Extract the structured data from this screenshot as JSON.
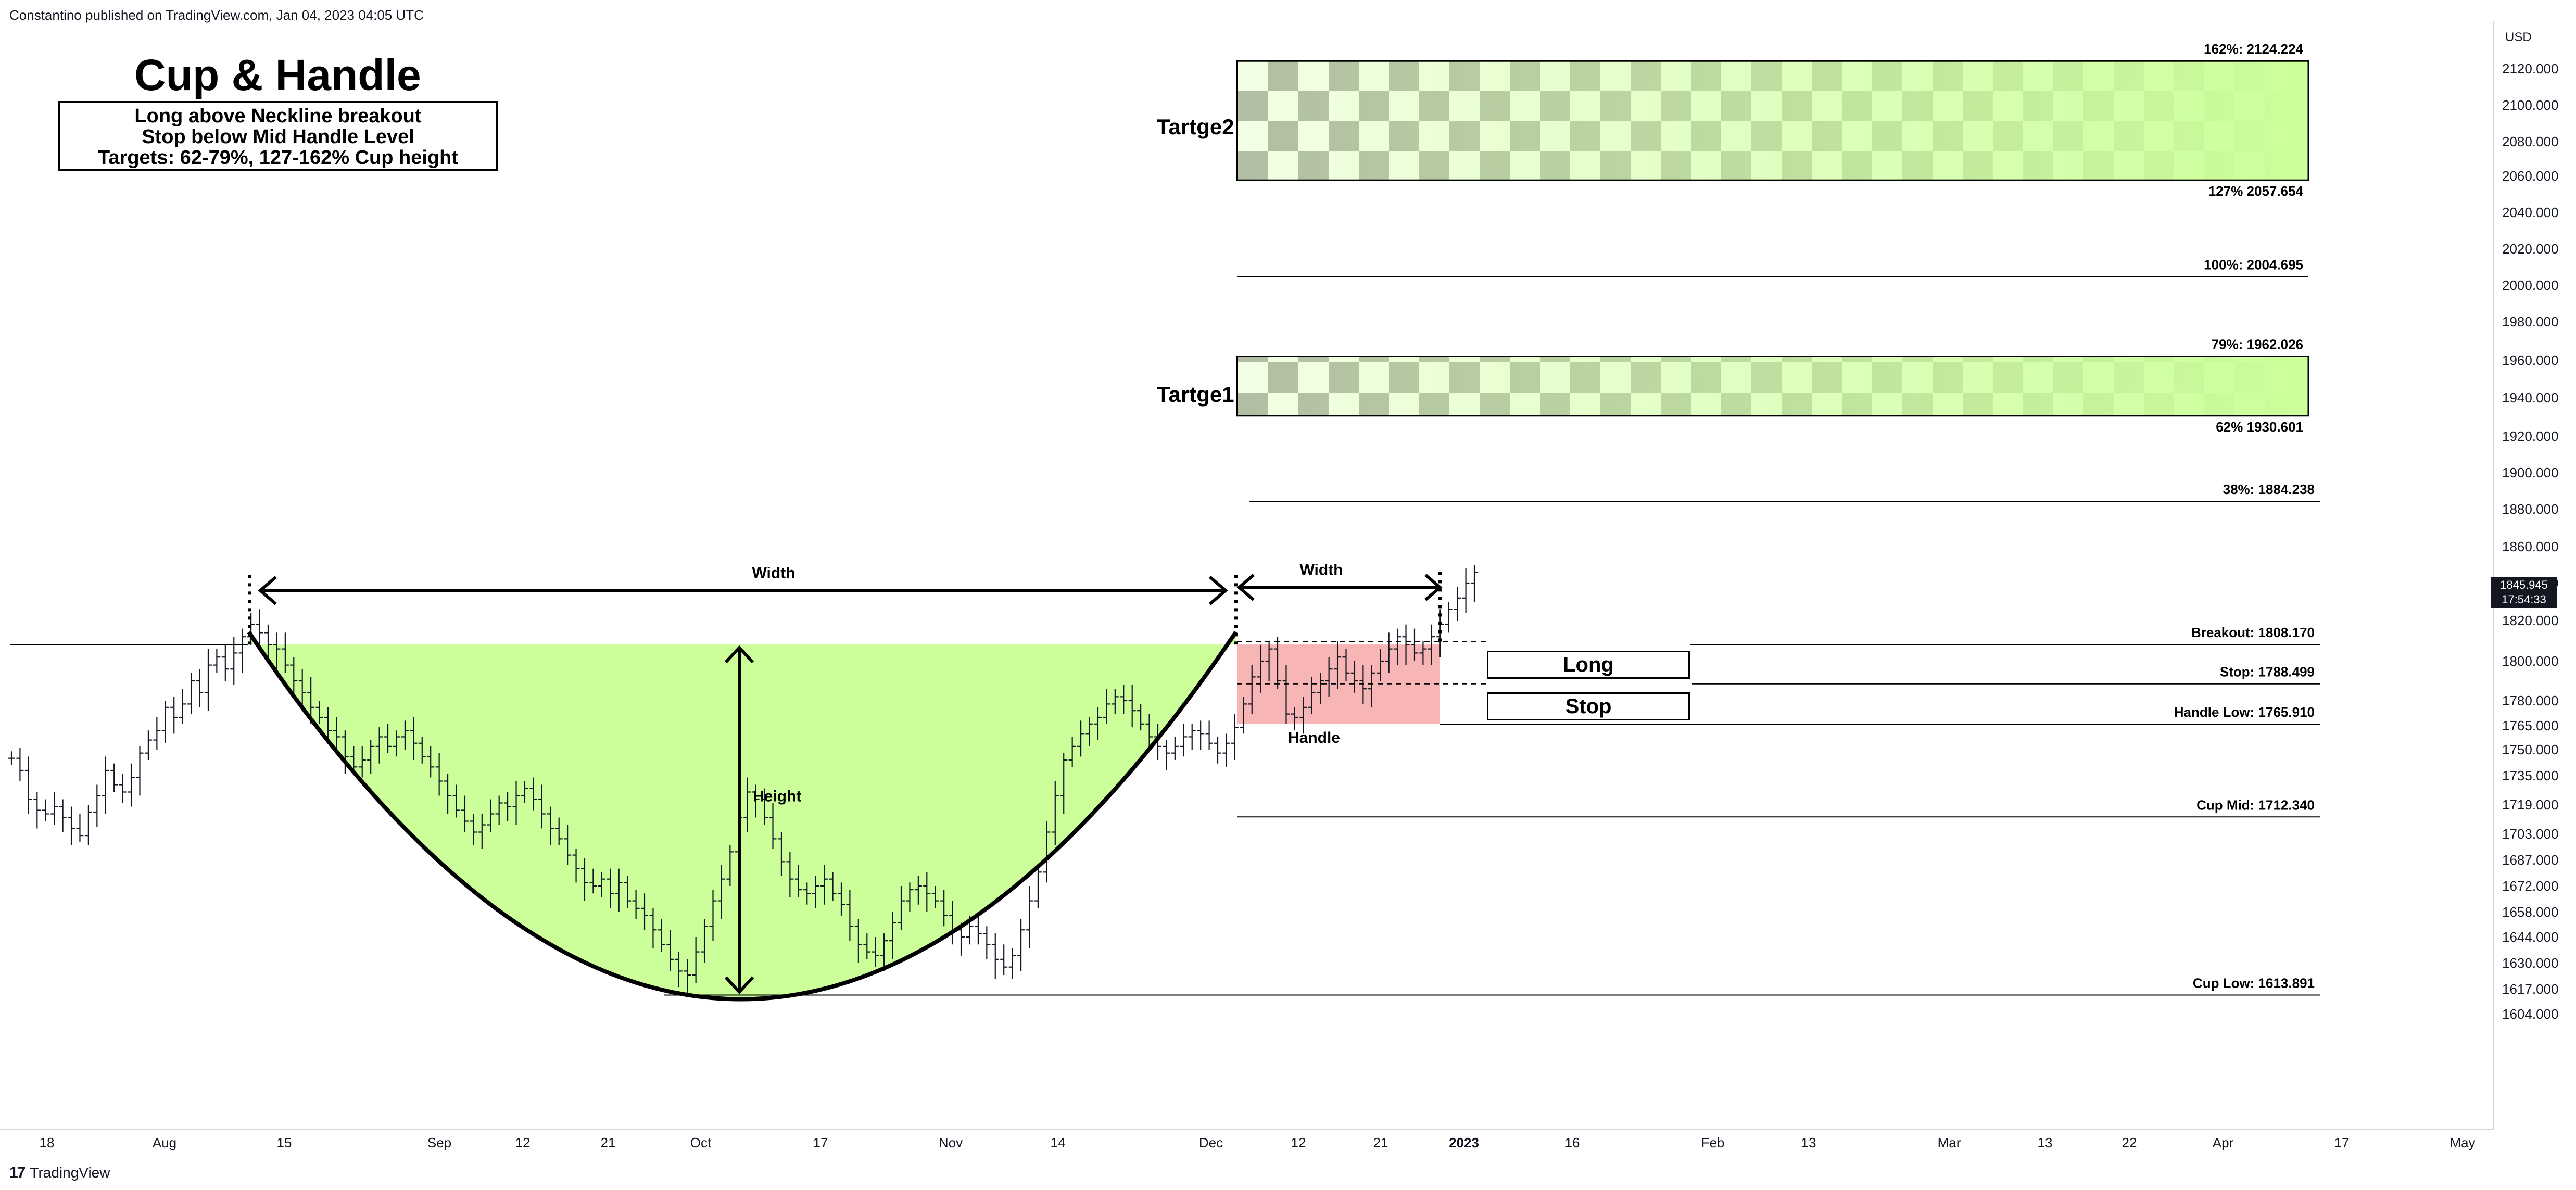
{
  "header": {
    "attribution": "Constantino published on TradingView.com, Jan 04, 2023 04:05 UTC"
  },
  "footer": {
    "brand": "TradingView",
    "logo_mark": "17"
  },
  "annotations": {
    "title": "Cup & Handle",
    "notes": [
      "Long above Neckline breakout",
      "Stop below Mid Handle Level",
      "Targets: 62-79%, 127-162% Cup height"
    ],
    "target2_label": "Tartge2",
    "target1_label": "Tartge1",
    "long_label": "Long",
    "stop_label": "Stop",
    "cup_width_label": "Width",
    "handle_width_label": "Width",
    "height_label": "Height",
    "handle_label": "Handle"
  },
  "chart_data": {
    "type": "ohlc",
    "currency": "USD",
    "y_axis_ticks": [
      2120,
      2100,
      2080,
      2060,
      2040,
      2020,
      2000,
      1980,
      1960,
      1940,
      1920,
      1900,
      1880,
      1860,
      1840,
      1820,
      1800,
      1780,
      1765,
      1750,
      1735,
      1719,
      1703,
      1687,
      1672,
      1658,
      1644,
      1630,
      1617,
      1604
    ],
    "x_axis_labels": [
      "18",
      "Aug",
      "15",
      "Sep",
      "12",
      "21",
      "Oct",
      "17",
      "Nov",
      "14",
      "Dec",
      "12",
      "21",
      "2023",
      "16",
      "Feb",
      "13",
      "Mar",
      "13",
      "22",
      "Apr",
      "17",
      "May"
    ],
    "x_axis_bold": [
      "2023"
    ],
    "last_price": {
      "value": "1845.945",
      "countdown": "17:54:33"
    },
    "levels": [
      {
        "label": "162%: 2124.224",
        "value": 2124.224
      },
      {
        "label": "127% 2057.654",
        "value": 2057.654
      },
      {
        "label": "100%: 2004.695",
        "value": 2004.695
      },
      {
        "label": "79%: 1962.026",
        "value": 1962.026
      },
      {
        "label": "62% 1930.601",
        "value": 1930.601
      },
      {
        "label": "38%: 1884.238",
        "value": 1884.238
      },
      {
        "label": "Breakout: 1808.170",
        "value": 1808.17
      },
      {
        "label": "Stop: 1788.499",
        "value": 1788.499
      },
      {
        "label": "Handle Low: 1765.910",
        "value": 1765.91
      },
      {
        "label": "Cup Mid: 1712.340",
        "value": 1712.34
      },
      {
        "label": "Cup Low: 1613.891",
        "value": 1613.891
      }
    ],
    "ohlc_daily": [
      1745,
      1738,
      1722,
      1716,
      1714,
      1718,
      1712,
      1706,
      1702,
      1715,
      1724,
      1738,
      1730,
      1726,
      1734,
      1748,
      1756,
      1762,
      1776,
      1770,
      1778,
      1790,
      1784,
      1798,
      1802,
      1796,
      1804,
      1812,
      1818,
      1814,
      1808,
      1806,
      1798,
      1790,
      1784,
      1776,
      1770,
      1762,
      1758,
      1746,
      1740,
      1744,
      1752,
      1758,
      1752,
      1758,
      1762,
      1754,
      1746,
      1740,
      1732,
      1724,
      1716,
      1710,
      1704,
      1708,
      1714,
      1720,
      1718,
      1724,
      1728,
      1722,
      1714,
      1706,
      1700,
      1690,
      1682,
      1674,
      1672,
      1676,
      1668,
      1674,
      1664,
      1660,
      1656,
      1648,
      1640,
      1632,
      1626,
      1624,
      1636,
      1650,
      1664,
      1676,
      1692,
      1712,
      1726,
      1722,
      1712,
      1700,
      1686,
      1676,
      1670,
      1668,
      1672,
      1676,
      1668,
      1662,
      1650,
      1640,
      1636,
      1634,
      1642,
      1652,
      1664,
      1670,
      1672,
      1668,
      1664,
      1656,
      1648,
      1644,
      1650,
      1646,
      1640,
      1632,
      1628,
      1634,
      1648,
      1664,
      1680,
      1704,
      1724,
      1744,
      1752,
      1760,
      1766,
      1770,
      1778,
      1782,
      1780,
      1774,
      1766,
      1758,
      1752,
      1748,
      1752,
      1758,
      1762,
      1760,
      1754,
      1748,
      1754,
      1764,
      1778,
      1792,
      1800,
      1806,
      1790,
      1772,
      1770,
      1776,
      1784,
      1790,
      1796,
      1802,
      1794,
      1790,
      1786,
      1794,
      1800,
      1806,
      1812,
      1808,
      1804,
      1806,
      1812,
      1818,
      1826,
      1832,
      1840,
      1845.945
    ]
  }
}
